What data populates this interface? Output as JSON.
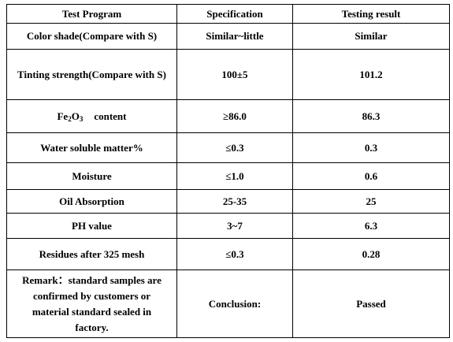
{
  "table": {
    "headers": {
      "program": "Test Program",
      "specification": "Specification",
      "result": "Testing result"
    },
    "rows": [
      {
        "program": "Color shade(Compare with S)",
        "specification": "Similar~little",
        "result": "Similar"
      },
      {
        "program": "Tinting strength(Compare with S)",
        "specification": "100±5",
        "result": "101.2"
      },
      {
        "program_main": "Fe",
        "program_sub1": "2",
        "program_mid": "O",
        "program_sub2": "3",
        "program_tail": "content",
        "specification": "≥86.0",
        "result": "86.3"
      },
      {
        "program": "Water soluble matter%",
        "specification": "≤0.3",
        "result": "0.3"
      },
      {
        "program": "Moisture",
        "specification": "≤1.0",
        "result": "0.6"
      },
      {
        "program": "Oil Absorption",
        "specification": "25-35",
        "result": "25"
      },
      {
        "program": "PH value",
        "specification": "3~7",
        "result": "6.3"
      },
      {
        "program": "Residues after 325 mesh",
        "specification": "≤0.3",
        "result": "0.28"
      }
    ],
    "remark": "Remark：standard samples are confirmed by customers or material standard sealed in factory.",
    "conclusion_label": "Conclusion:",
    "conclusion_value": "Passed"
  }
}
